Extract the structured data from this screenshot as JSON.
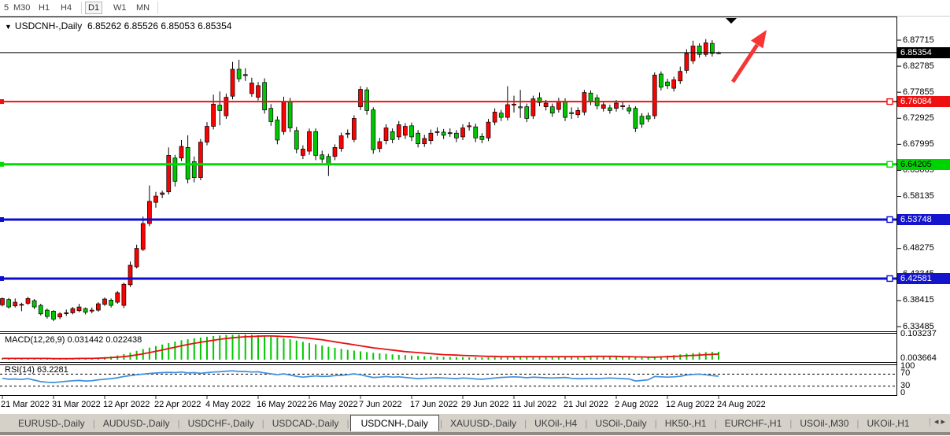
{
  "toolbar": {
    "timeframes": [
      "5",
      "M30",
      "H1",
      "H4",
      "D1",
      "W1",
      "MN"
    ],
    "active": "D1"
  },
  "chart_header": {
    "symbol": "USDCNH-,Daily",
    "ohlc_text": "6.85262 6.85526 6.85053 6.85354"
  },
  "price_axis": {
    "ticks": [
      "6.87715",
      "6.82785",
      "6.77855",
      "6.72925",
      "6.67995",
      "6.63065",
      "6.58135",
      "6.53205",
      "6.48275",
      "6.43345",
      "6.38415",
      "6.33485"
    ],
    "badges": [
      {
        "price": 6.85354,
        "label": "6.85354",
        "bg": "#000000",
        "fg": "#ffffff"
      },
      {
        "price": 6.76084,
        "label": "6.76084",
        "bg": "#ee1111",
        "fg": "#ffffff"
      },
      {
        "price": 6.64205,
        "label": "6.64205",
        "bg": "#00d400",
        "fg": "#000000"
      },
      {
        "price": 6.53748,
        "label": "6.53748",
        "bg": "#1414cc",
        "fg": "#ffffff"
      },
      {
        "price": 6.42581,
        "label": "6.42581",
        "bg": "#1414cc",
        "fg": "#ffffff"
      }
    ]
  },
  "indicators": {
    "macd_label": "MACD(12,26,9) 0.031442 0.022438",
    "macd_axis_top": "0.103237",
    "macd_axis_low": "0.003664",
    "rsi_label": "RSI(14) 63.2281",
    "rsi_axis": [
      "100",
      "70",
      "30",
      "0"
    ]
  },
  "tabs": {
    "items": [
      "EURUSD-,Daily",
      "AUDUSD-,Daily",
      "USDCHF-,Daily",
      "USDCAD-,Daily",
      "USDCNH-,Daily",
      "XAUUSD-,Daily",
      "UKOil-,H4",
      "USOil-,Daily",
      "HK50-,H1",
      "EURCHF-,H1",
      "USOil-,M30",
      "UKOil-,H1"
    ],
    "active_index": 4,
    "scroll_left": "◂",
    "scroll_right": "▸"
  },
  "chart_data": {
    "type": "candlestick",
    "symbol": "USDCNH-",
    "timeframe": "Daily",
    "current_ohlc": {
      "open": 6.85262,
      "high": 6.85526,
      "low": 6.85053,
      "close": 6.85354
    },
    "up_color": "#fd0000",
    "down_color": "#00c800",
    "price_axis_range": [
      6.33485,
      6.87715
    ],
    "x_labels": [
      "21 Mar 2022",
      "31 Mar 2022",
      "12 Apr 2022",
      "22 Apr 2022",
      "4 May 2022",
      "16 May 2022",
      "26 May 2022",
      "7 Jun 2022",
      "17 Jun 2022",
      "29 Jun 2022",
      "11 Jul 2022",
      "21 Jul 2022",
      "2 Aug 2022",
      "12 Aug 2022",
      "24 Aug 2022"
    ],
    "x_label_every_n_bars": 8,
    "hlines": [
      {
        "price": 6.85354,
        "color": "#000000",
        "w": 1
      },
      {
        "price": 6.76084,
        "color": "#f01010",
        "w": 2
      },
      {
        "price": 6.64205,
        "color": "#00dc00",
        "w": 3
      },
      {
        "price": 6.53748,
        "color": "#0d0dd0",
        "w": 3
      },
      {
        "price": 6.42581,
        "color": "#0d0dd0",
        "w": 3
      }
    ],
    "candles_ohlc": [
      [
        6.376,
        6.39,
        6.373,
        6.388
      ],
      [
        6.386,
        6.389,
        6.369,
        6.372
      ],
      [
        6.374,
        6.388,
        6.371,
        6.381
      ],
      [
        6.377,
        6.38,
        6.364,
        6.377
      ],
      [
        6.379,
        6.391,
        6.376,
        6.388
      ],
      [
        6.384,
        6.387,
        6.368,
        6.372
      ],
      [
        6.375,
        6.378,
        6.356,
        6.359
      ],
      [
        6.366,
        6.369,
        6.35,
        6.354
      ],
      [
        6.364,
        6.366,
        6.345,
        6.349
      ],
      [
        6.353,
        6.362,
        6.349,
        6.359
      ],
      [
        6.361,
        6.367,
        6.355,
        6.361
      ],
      [
        6.361,
        6.372,
        6.358,
        6.369
      ],
      [
        6.365,
        6.378,
        6.362,
        6.372
      ],
      [
        6.369,
        6.371,
        6.358,
        6.362
      ],
      [
        6.366,
        6.371,
        6.36,
        6.366
      ],
      [
        6.366,
        6.381,
        6.363,
        6.378
      ],
      [
        6.377,
        6.39,
        6.374,
        6.387
      ],
      [
        6.385,
        6.388,
        6.371,
        6.375
      ],
      [
        6.381,
        6.402,
        6.378,
        6.399
      ],
      [
        6.375,
        6.418,
        6.37,
        6.415
      ],
      [
        6.414,
        6.458,
        6.41,
        6.451
      ],
      [
        6.448,
        6.49,
        6.445,
        6.483
      ],
      [
        6.481,
        6.543,
        6.478,
        6.53
      ],
      [
        6.53,
        6.602,
        6.525,
        6.572
      ],
      [
        6.57,
        6.59,
        6.56,
        6.582
      ],
      [
        6.585,
        6.592,
        6.578,
        6.588
      ],
      [
        6.59,
        6.674,
        6.585,
        6.659
      ],
      [
        6.654,
        6.66,
        6.6,
        6.61
      ],
      [
        6.654,
        6.688,
        6.648,
        6.676
      ],
      [
        6.674,
        6.697,
        6.606,
        6.614
      ],
      [
        6.647,
        6.657,
        6.608,
        6.617
      ],
      [
        6.617,
        6.69,
        6.612,
        6.684
      ],
      [
        6.684,
        6.722,
        6.678,
        6.714
      ],
      [
        6.714,
        6.774,
        6.708,
        6.756
      ],
      [
        6.754,
        6.78,
        6.716,
        6.744
      ],
      [
        6.734,
        6.776,
        6.728,
        6.769
      ],
      [
        6.771,
        6.836,
        6.765,
        6.822
      ],
      [
        6.822,
        6.84,
        6.798,
        6.804
      ],
      [
        6.81,
        6.824,
        6.8,
        6.812
      ],
      [
        6.776,
        6.806,
        6.77,
        6.796
      ],
      [
        6.769,
        6.798,
        6.763,
        6.791
      ],
      [
        6.797,
        6.805,
        6.738,
        6.745
      ],
      [
        6.748,
        6.756,
        6.715,
        6.723
      ],
      [
        6.726,
        6.733,
        6.68,
        6.688
      ],
      [
        6.704,
        6.77,
        6.698,
        6.761
      ],
      [
        6.761,
        6.768,
        6.703,
        6.711
      ],
      [
        6.706,
        6.713,
        6.663,
        6.671
      ],
      [
        6.659,
        6.678,
        6.652,
        6.671
      ],
      [
        6.667,
        6.71,
        6.66,
        6.704
      ],
      [
        6.704,
        6.71,
        6.65,
        6.659
      ],
      [
        6.66,
        6.668,
        6.645,
        6.652
      ],
      [
        6.657,
        6.662,
        6.62,
        6.642
      ],
      [
        6.657,
        6.68,
        6.65,
        6.674
      ],
      [
        6.672,
        6.702,
        6.666,
        6.696
      ],
      [
        6.699,
        6.708,
        6.692,
        6.701
      ],
      [
        6.689,
        6.735,
        6.684,
        6.729
      ],
      [
        6.751,
        6.79,
        6.745,
        6.784
      ],
      [
        6.783,
        6.788,
        6.736,
        6.744
      ],
      [
        6.745,
        6.75,
        6.662,
        6.67
      ],
      [
        6.672,
        6.692,
        6.665,
        6.685
      ],
      [
        6.687,
        6.718,
        6.68,
        6.711
      ],
      [
        6.704,
        6.71,
        6.682,
        6.689
      ],
      [
        6.694,
        6.724,
        6.688,
        6.717
      ],
      [
        6.697,
        6.72,
        6.69,
        6.714
      ],
      [
        6.715,
        6.721,
        6.686,
        6.694
      ],
      [
        6.701,
        6.707,
        6.674,
        6.681
      ],
      [
        6.681,
        6.698,
        6.675,
        6.691
      ],
      [
        6.687,
        6.708,
        6.68,
        6.701
      ],
      [
        6.704,
        6.712,
        6.696,
        6.704
      ],
      [
        6.703,
        6.709,
        6.69,
        6.697
      ],
      [
        6.702,
        6.71,
        6.694,
        6.702
      ],
      [
        6.701,
        6.707,
        6.684,
        6.692
      ],
      [
        6.694,
        6.718,
        6.688,
        6.711
      ],
      [
        6.715,
        6.722,
        6.706,
        6.715
      ],
      [
        6.713,
        6.719,
        6.684,
        6.692
      ],
      [
        6.695,
        6.701,
        6.682,
        6.689
      ],
      [
        6.692,
        6.728,
        6.686,
        6.722
      ],
      [
        6.722,
        6.748,
        6.716,
        6.741
      ],
      [
        6.739,
        6.745,
        6.724,
        6.731
      ],
      [
        6.731,
        6.79,
        6.725,
        6.755
      ],
      [
        6.756,
        6.772,
        6.74,
        6.756
      ],
      [
        6.751,
        6.783,
        6.73,
        6.749
      ],
      [
        6.751,
        6.757,
        6.722,
        6.729
      ],
      [
        6.734,
        6.772,
        6.728,
        6.766
      ],
      [
        6.768,
        6.778,
        6.752,
        6.759
      ],
      [
        6.751,
        6.764,
        6.744,
        6.758
      ],
      [
        6.751,
        6.757,
        6.732,
        6.739
      ],
      [
        6.746,
        6.768,
        6.74,
        6.761
      ],
      [
        6.761,
        6.767,
        6.724,
        6.731
      ],
      [
        6.74,
        6.75,
        6.728,
        6.738
      ],
      [
        6.736,
        6.75,
        6.73,
        6.744
      ],
      [
        6.741,
        6.783,
        6.735,
        6.778
      ],
      [
        6.777,
        6.782,
        6.754,
        6.761
      ],
      [
        6.768,
        6.774,
        6.746,
        6.753
      ],
      [
        6.748,
        6.761,
        6.742,
        6.755
      ],
      [
        6.749,
        6.755,
        6.738,
        6.744
      ],
      [
        6.748,
        6.764,
        6.742,
        6.758
      ],
      [
        6.753,
        6.76,
        6.745,
        6.753
      ],
      [
        6.749,
        6.755,
        6.737,
        6.743
      ],
      [
        6.748,
        6.752,
        6.703,
        6.71
      ],
      [
        6.733,
        6.739,
        6.711,
        6.718
      ],
      [
        6.734,
        6.74,
        6.722,
        6.728
      ],
      [
        6.734,
        6.816,
        6.728,
        6.811
      ],
      [
        6.813,
        6.818,
        6.782,
        6.788
      ],
      [
        6.798,
        6.804,
        6.785,
        6.791
      ],
      [
        6.786,
        6.808,
        6.78,
        6.802
      ],
      [
        6.8,
        6.827,
        6.794,
        6.818
      ],
      [
        6.82,
        6.86,
        6.814,
        6.852
      ],
      [
        6.838,
        6.876,
        6.832,
        6.866
      ],
      [
        6.866,
        6.871,
        6.844,
        6.85
      ],
      [
        6.85,
        6.879,
        6.846,
        6.872
      ],
      [
        6.871,
        6.877,
        6.846,
        6.852
      ],
      [
        6.8526,
        6.8553,
        6.8505,
        6.8535
      ]
    ],
    "macd": {
      "params": "12,26,9",
      "current": [
        0.031442,
        0.022438
      ],
      "range_top": 0.103237,
      "hist": [
        0.006,
        0.007,
        0.006,
        0.005,
        0.006,
        0.007,
        0.005,
        0.004,
        0.003,
        0.003,
        0.004,
        0.005,
        0.006,
        0.006,
        0.007,
        0.008,
        0.01,
        0.013,
        0.017,
        0.022,
        0.028,
        0.035,
        0.042,
        0.048,
        0.054,
        0.06,
        0.066,
        0.072,
        0.077,
        0.081,
        0.085,
        0.088,
        0.091,
        0.094,
        0.096,
        0.098,
        0.099,
        0.1,
        0.1,
        0.099,
        0.097,
        0.095,
        0.092,
        0.089,
        0.085,
        0.081,
        0.076,
        0.071,
        0.066,
        0.061,
        0.056,
        0.051,
        0.047,
        0.043,
        0.039,
        0.036,
        0.033,
        0.03,
        0.027,
        0.025,
        0.023,
        0.021,
        0.019,
        0.018,
        0.016,
        0.015,
        0.014,
        0.013,
        0.012,
        0.011,
        0.011,
        0.01,
        0.01,
        0.009,
        0.009,
        0.009,
        0.009,
        0.01,
        0.01,
        0.011,
        0.011,
        0.012,
        0.012,
        0.012,
        0.013,
        0.013,
        0.012,
        0.012,
        0.012,
        0.012,
        0.013,
        0.013,
        0.014,
        0.013,
        0.013,
        0.012,
        0.011,
        0.011,
        0.01,
        0.009,
        0.008,
        0.008,
        0.011,
        0.014,
        0.016,
        0.018,
        0.021,
        0.024,
        0.026,
        0.028,
        0.03,
        0.031,
        0.0314
      ],
      "signal": [
        0.005,
        0.005,
        0.005,
        0.005,
        0.005,
        0.005,
        0.005,
        0.005,
        0.004,
        0.004,
        0.004,
        0.004,
        0.005,
        0.005,
        0.005,
        0.006,
        0.007,
        0.008,
        0.01,
        0.012,
        0.015,
        0.019,
        0.023,
        0.028,
        0.033,
        0.038,
        0.044,
        0.049,
        0.055,
        0.06,
        0.065,
        0.069,
        0.073,
        0.077,
        0.081,
        0.084,
        0.087,
        0.089,
        0.091,
        0.092,
        0.093,
        0.094,
        0.094,
        0.093,
        0.092,
        0.091,
        0.089,
        0.087,
        0.085,
        0.082,
        0.079,
        0.075,
        0.071,
        0.067,
        0.063,
        0.059,
        0.055,
        0.051,
        0.047,
        0.044,
        0.041,
        0.038,
        0.035,
        0.032,
        0.03,
        0.028,
        0.026,
        0.024,
        0.022,
        0.02,
        0.019,
        0.018,
        0.017,
        0.016,
        0.015,
        0.014,
        0.013,
        0.013,
        0.012,
        0.012,
        0.012,
        0.012,
        0.012,
        0.012,
        0.012,
        0.012,
        0.012,
        0.012,
        0.012,
        0.012,
        0.012,
        0.012,
        0.013,
        0.013,
        0.013,
        0.013,
        0.013,
        0.012,
        0.012,
        0.011,
        0.011,
        0.01,
        0.01,
        0.011,
        0.012,
        0.013,
        0.014,
        0.016,
        0.017,
        0.018,
        0.02,
        0.021,
        0.0224
      ]
    },
    "rsi": {
      "period": 14,
      "current": 63.2281,
      "levels": [
        70,
        30
      ],
      "values": [
        56,
        53,
        54,
        52,
        55,
        50,
        45,
        43,
        42,
        44,
        46,
        48,
        49,
        47,
        48,
        51,
        53,
        55,
        58,
        62,
        65,
        68,
        70,
        72,
        74,
        75,
        76,
        75,
        77,
        74,
        75,
        73,
        75,
        77,
        78,
        80,
        81,
        79,
        79,
        77,
        78,
        74,
        71,
        68,
        71,
        67,
        63,
        60,
        62,
        64,
        62,
        63,
        65,
        66,
        68,
        71,
        68,
        63,
        59,
        60,
        62,
        60,
        61,
        59,
        57,
        55,
        56,
        57,
        58,
        57,
        56,
        55,
        57,
        56,
        54,
        53,
        55,
        57,
        59,
        60,
        61,
        60,
        58,
        60,
        59,
        58,
        57,
        58,
        59,
        56,
        55,
        55,
        56,
        55,
        56,
        57,
        56,
        55,
        54,
        47,
        49,
        51,
        62,
        61,
        60,
        61,
        63,
        67,
        69,
        70,
        68,
        65,
        63.2
      ]
    },
    "annotations": {
      "arrow_color": "#f73535",
      "shift_marker": "down-triangle"
    }
  }
}
